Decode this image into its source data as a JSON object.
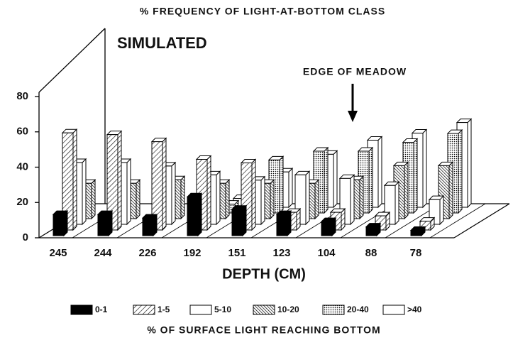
{
  "chart_data": {
    "type": "bar3d",
    "title": "% FREQUENCY OF LIGHT-AT-BOTTOM CLASS",
    "subtitle": "SIMULATED",
    "annotation": "EDGE OF MEADOW",
    "xlabel": "DEPTH (CM)",
    "legend_title": "% OF SURFACE LIGHT REACHING BOTTOM",
    "categories": [
      "245",
      "244",
      "226",
      "192",
      "151",
      "123",
      "104",
      "88",
      "78"
    ],
    "series": [
      {
        "name": "0-1",
        "color": "#000000",
        "pattern": "solid",
        "values": [
          12,
          12,
          10,
          22,
          15,
          12,
          8,
          5,
          3
        ]
      },
      {
        "name": "1-5",
        "color": "#000000",
        "pattern": "hatch",
        "values": [
          55,
          54,
          50,
          40,
          38,
          10,
          10,
          8,
          5
        ]
      },
      {
        "name": "5-10",
        "color": "#000000",
        "pattern": "none",
        "values": [
          35,
          35,
          33,
          28,
          25,
          28,
          26,
          22,
          14
        ]
      },
      {
        "name": "10-20",
        "color": "#000000",
        "pattern": "dense",
        "values": [
          20,
          20,
          22,
          20,
          20,
          20,
          22,
          30,
          30
        ]
      },
      {
        "name": "20-40",
        "color": "#000000",
        "pattern": "dots",
        "values": [
          0,
          0,
          0,
          5,
          30,
          35,
          35,
          40,
          45
        ]
      },
      {
        "name": ">40",
        "color": "#000000",
        "pattern": "none",
        "values": [
          0,
          0,
          0,
          5,
          20,
          30,
          38,
          42,
          48
        ]
      }
    ],
    "ylim": [
      0,
      80
    ],
    "yticks": [
      0,
      20,
      40,
      60,
      80
    ]
  }
}
